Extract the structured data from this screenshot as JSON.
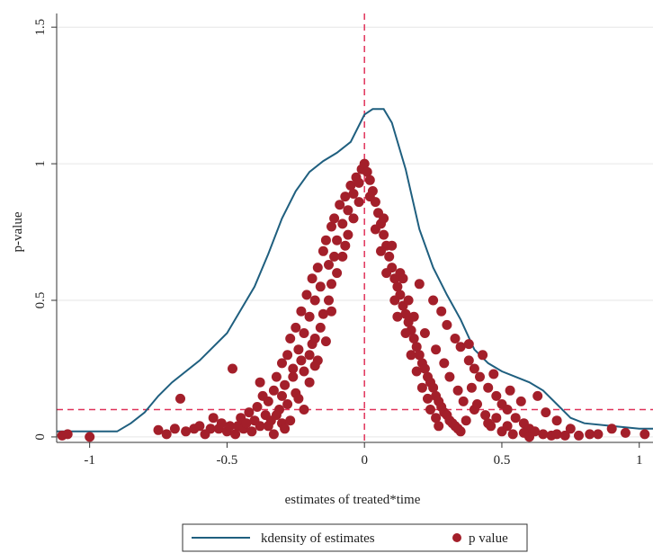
{
  "chart_data": {
    "type": "scatter",
    "xlabel": "estimates of treated*time",
    "ylabel": "p-value",
    "xlim": [
      -1.12,
      1.05
    ],
    "ylim": [
      -0.02,
      1.55
    ],
    "x_ticks": [
      {
        "value": -1,
        "label": "-1"
      },
      {
        "value": -0.5,
        "label": "-0.5"
      },
      {
        "value": 0,
        "label": "0"
      },
      {
        "value": 0.5,
        "label": "0.5"
      },
      {
        "value": 1,
        "label": "1"
      }
    ],
    "y_ticks": [
      {
        "value": 0,
        "label": "0"
      },
      {
        "value": 0.5,
        "label": "0.5"
      },
      {
        "value": 1,
        "label": "1"
      },
      {
        "value": 1.5,
        "label": "1.5"
      }
    ],
    "grid": "horizontal",
    "reference_lines": {
      "vertical_x": 0,
      "horizontal_y": 0.1
    },
    "legend": {
      "position": "bottom",
      "entries": [
        "kdensity of estimates",
        "p value"
      ]
    },
    "colors": {
      "kdensity": "#1f5f7f",
      "points": "#a31f2a",
      "reference": "#e0335a",
      "grid": "#e6e6e6"
    },
    "series": [
      {
        "name": "kdensity of estimates",
        "kind": "line",
        "points": [
          [
            -1.12,
            0.02
          ],
          [
            -1.0,
            0.02
          ],
          [
            -0.9,
            0.02
          ],
          [
            -0.85,
            0.05
          ],
          [
            -0.8,
            0.09
          ],
          [
            -0.75,
            0.15
          ],
          [
            -0.7,
            0.2
          ],
          [
            -0.6,
            0.28
          ],
          [
            -0.5,
            0.38
          ],
          [
            -0.4,
            0.55
          ],
          [
            -0.35,
            0.67
          ],
          [
            -0.3,
            0.8
          ],
          [
            -0.25,
            0.9
          ],
          [
            -0.2,
            0.97
          ],
          [
            -0.15,
            1.01
          ],
          [
            -0.1,
            1.04
          ],
          [
            -0.05,
            1.08
          ],
          [
            0.0,
            1.18
          ],
          [
            0.03,
            1.2
          ],
          [
            0.07,
            1.2
          ],
          [
            0.1,
            1.15
          ],
          [
            0.15,
            0.98
          ],
          [
            0.2,
            0.76
          ],
          [
            0.25,
            0.62
          ],
          [
            0.3,
            0.52
          ],
          [
            0.35,
            0.43
          ],
          [
            0.4,
            0.32
          ],
          [
            0.45,
            0.27
          ],
          [
            0.5,
            0.24
          ],
          [
            0.55,
            0.22
          ],
          [
            0.6,
            0.2
          ],
          [
            0.65,
            0.17
          ],
          [
            0.7,
            0.12
          ],
          [
            0.75,
            0.07
          ],
          [
            0.8,
            0.05
          ],
          [
            0.9,
            0.04
          ],
          [
            1.0,
            0.03
          ],
          [
            1.05,
            0.03
          ]
        ]
      },
      {
        "name": "p value",
        "kind": "scatter",
        "points": [
          [
            -1.1,
            0.005
          ],
          [
            -1.08,
            0.01
          ],
          [
            -1.0,
            0.0
          ],
          [
            -0.75,
            0.025
          ],
          [
            -0.72,
            0.01
          ],
          [
            -0.69,
            0.03
          ],
          [
            -0.67,
            0.14
          ],
          [
            -0.65,
            0.02
          ],
          [
            -0.62,
            0.03
          ],
          [
            -0.6,
            0.04
          ],
          [
            -0.58,
            0.01
          ],
          [
            -0.56,
            0.03
          ],
          [
            -0.55,
            0.07
          ],
          [
            -0.53,
            0.03
          ],
          [
            -0.52,
            0.05
          ],
          [
            -0.5,
            0.02
          ],
          [
            -0.49,
            0.04
          ],
          [
            -0.48,
            0.25
          ],
          [
            -0.47,
            0.01
          ],
          [
            -0.46,
            0.04
          ],
          [
            -0.45,
            0.07
          ],
          [
            -0.44,
            0.03
          ],
          [
            -0.43,
            0.05
          ],
          [
            -0.42,
            0.09
          ],
          [
            -0.41,
            0.02
          ],
          [
            -0.4,
            0.06
          ],
          [
            -0.39,
            0.11
          ],
          [
            -0.38,
            0.2
          ],
          [
            -0.38,
            0.04
          ],
          [
            -0.37,
            0.15
          ],
          [
            -0.36,
            0.08
          ],
          [
            -0.35,
            0.13
          ],
          [
            -0.34,
            0.06
          ],
          [
            -0.33,
            0.17
          ],
          [
            -0.32,
            0.22
          ],
          [
            -0.31,
            0.1
          ],
          [
            -0.3,
            0.27
          ],
          [
            -0.3,
            0.05
          ],
          [
            -0.29,
            0.19
          ],
          [
            -0.28,
            0.3
          ],
          [
            -0.28,
            0.12
          ],
          [
            -0.27,
            0.36
          ],
          [
            -0.26,
            0.25
          ],
          [
            -0.25,
            0.4
          ],
          [
            -0.25,
            0.16
          ],
          [
            -0.24,
            0.32
          ],
          [
            -0.23,
            0.46
          ],
          [
            -0.22,
            0.38
          ],
          [
            -0.22,
            0.24
          ],
          [
            -0.21,
            0.52
          ],
          [
            -0.2,
            0.44
          ],
          [
            -0.2,
            0.3
          ],
          [
            -0.19,
            0.58
          ],
          [
            -0.18,
            0.5
          ],
          [
            -0.18,
            0.36
          ],
          [
            -0.17,
            0.62
          ],
          [
            -0.16,
            0.55
          ],
          [
            -0.15,
            0.68
          ],
          [
            -0.15,
            0.45
          ],
          [
            -0.14,
            0.72
          ],
          [
            -0.13,
            0.63
          ],
          [
            -0.12,
            0.77
          ],
          [
            -0.12,
            0.56
          ],
          [
            -0.11,
            0.8
          ],
          [
            -0.1,
            0.72
          ],
          [
            -0.09,
            0.85
          ],
          [
            -0.08,
            0.78
          ],
          [
            -0.07,
            0.88
          ],
          [
            -0.06,
            0.83
          ],
          [
            -0.05,
            0.92
          ],
          [
            -0.04,
            0.89
          ],
          [
            -0.03,
            0.95
          ],
          [
            -0.02,
            0.93
          ],
          [
            -0.01,
            0.98
          ],
          [
            0.0,
            1.0
          ],
          [
            0.01,
            0.97
          ],
          [
            0.02,
            0.94
          ],
          [
            0.03,
            0.9
          ],
          [
            0.04,
            0.86
          ],
          [
            0.05,
            0.82
          ],
          [
            0.06,
            0.78
          ],
          [
            0.07,
            0.74
          ],
          [
            0.08,
            0.7
          ],
          [
            0.09,
            0.66
          ],
          [
            0.1,
            0.62
          ],
          [
            0.11,
            0.58
          ],
          [
            0.12,
            0.55
          ],
          [
            0.13,
            0.52
          ],
          [
            0.14,
            0.48
          ],
          [
            0.15,
            0.45
          ],
          [
            0.16,
            0.42
          ],
          [
            0.17,
            0.39
          ],
          [
            0.18,
            0.36
          ],
          [
            0.19,
            0.33
          ],
          [
            0.2,
            0.3
          ],
          [
            0.21,
            0.27
          ],
          [
            0.22,
            0.25
          ],
          [
            0.23,
            0.22
          ],
          [
            0.24,
            0.2
          ],
          [
            0.25,
            0.18
          ],
          [
            0.26,
            0.15
          ],
          [
            0.27,
            0.13
          ],
          [
            0.28,
            0.11
          ],
          [
            0.29,
            0.09
          ],
          [
            0.3,
            0.08
          ],
          [
            0.31,
            0.06
          ],
          [
            0.32,
            0.05
          ],
          [
            0.33,
            0.04
          ],
          [
            0.34,
            0.03
          ],
          [
            0.35,
            0.02
          ],
          [
            0.07,
            0.8
          ],
          [
            0.1,
            0.7
          ],
          [
            0.13,
            0.6
          ],
          [
            0.16,
            0.5
          ],
          [
            0.2,
            0.56
          ],
          [
            0.25,
            0.5
          ],
          [
            0.28,
            0.46
          ],
          [
            0.3,
            0.41
          ],
          [
            0.33,
            0.36
          ],
          [
            0.35,
            0.33
          ],
          [
            0.38,
            0.28
          ],
          [
            0.4,
            0.25
          ],
          [
            0.42,
            0.22
          ],
          [
            0.45,
            0.18
          ],
          [
            0.48,
            0.15
          ],
          [
            0.5,
            0.12
          ],
          [
            0.52,
            0.1
          ],
          [
            0.55,
            0.07
          ],
          [
            0.58,
            0.05
          ],
          [
            0.6,
            0.03
          ],
          [
            0.62,
            0.02
          ],
          [
            0.65,
            0.01
          ],
          [
            0.68,
            0.005
          ],
          [
            0.7,
            0.01
          ],
          [
            0.73,
            0.005
          ],
          [
            0.78,
            0.005
          ],
          [
            0.82,
            0.01
          ],
          [
            0.9,
            0.03
          ],
          [
            0.95,
            0.015
          ],
          [
            1.02,
            0.01
          ],
          [
            0.38,
            0.34
          ],
          [
            0.43,
            0.3
          ],
          [
            0.47,
            0.23
          ],
          [
            0.53,
            0.17
          ],
          [
            0.57,
            0.13
          ],
          [
            0.63,
            0.15
          ],
          [
            0.66,
            0.09
          ],
          [
            0.7,
            0.06
          ],
          [
            0.75,
            0.03
          ],
          [
            0.85,
            0.01
          ],
          [
            0.14,
            0.58
          ],
          [
            0.18,
            0.44
          ],
          [
            0.22,
            0.38
          ],
          [
            0.26,
            0.32
          ],
          [
            0.29,
            0.27
          ],
          [
            0.31,
            0.22
          ],
          [
            0.34,
            0.17
          ],
          [
            0.36,
            0.13
          ],
          [
            0.4,
            0.1
          ],
          [
            0.44,
            0.08
          ],
          [
            0.46,
            0.04
          ],
          [
            0.5,
            0.02
          ],
          [
            0.54,
            0.01
          ],
          [
            0.58,
            0.015
          ],
          [
            0.6,
            0.0
          ],
          [
            -0.26,
            0.22
          ],
          [
            -0.24,
            0.14
          ],
          [
            -0.22,
            0.1
          ],
          [
            -0.2,
            0.2
          ],
          [
            -0.17,
            0.28
          ],
          [
            -0.16,
            0.4
          ],
          [
            -0.14,
            0.35
          ],
          [
            -0.12,
            0.46
          ],
          [
            -0.1,
            0.6
          ],
          [
            -0.08,
            0.66
          ],
          [
            -0.06,
            0.74
          ],
          [
            -0.04,
            0.8
          ],
          [
            -0.02,
            0.86
          ],
          [
            -0.3,
            0.15
          ],
          [
            -0.32,
            0.08
          ],
          [
            -0.35,
            0.04
          ],
          [
            -0.33,
            0.01
          ],
          [
            -0.29,
            0.03
          ],
          [
            -0.27,
            0.06
          ],
          [
            -0.23,
            0.28
          ],
          [
            -0.19,
            0.34
          ],
          [
            -0.18,
            0.26
          ],
          [
            -0.13,
            0.5
          ],
          [
            -0.11,
            0.66
          ],
          [
            -0.07,
            0.7
          ],
          [
            0.02,
            0.88
          ],
          [
            0.04,
            0.76
          ],
          [
            0.06,
            0.68
          ],
          [
            0.08,
            0.6
          ],
          [
            0.11,
            0.5
          ],
          [
            0.12,
            0.44
          ],
          [
            0.15,
            0.38
          ],
          [
            0.17,
            0.3
          ],
          [
            0.19,
            0.24
          ],
          [
            0.21,
            0.18
          ],
          [
            0.23,
            0.14
          ],
          [
            0.24,
            0.1
          ],
          [
            0.26,
            0.07
          ],
          [
            0.27,
            0.04
          ],
          [
            0.37,
            0.06
          ],
          [
            0.39,
            0.18
          ],
          [
            0.41,
            0.12
          ],
          [
            0.45,
            0.05
          ],
          [
            0.48,
            0.07
          ],
          [
            0.52,
            0.04
          ]
        ]
      }
    ]
  }
}
